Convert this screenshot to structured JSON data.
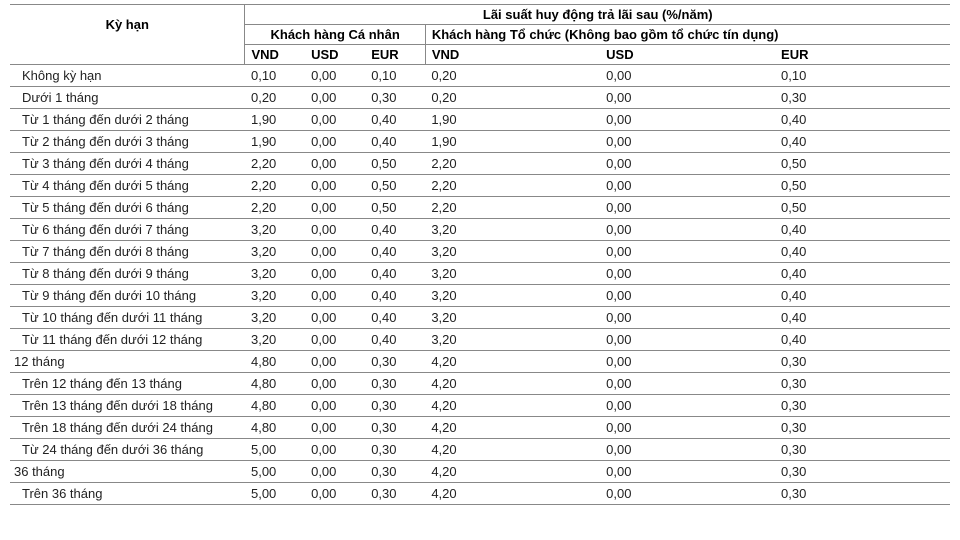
{
  "header": {
    "term_label": "Kỳ hạn",
    "group_title": "Lãi suất huy động trả lãi sau (%/năm)",
    "sub_personal": "Khách hàng Cá nhân",
    "sub_org": "Khách hàng Tổ chức (Không bao gồm tổ chức tín dụng)",
    "currencies": {
      "vnd": "VND",
      "usd": "USD",
      "eur": "EUR"
    }
  },
  "rows": [
    {
      "term": "Không kỳ hạn",
      "p_vnd": "0,10",
      "p_usd": "0,00",
      "p_eur": "0,10",
      "o_vnd": "0,20",
      "o_usd": "0,00",
      "o_eur": "0,10",
      "noindent": false
    },
    {
      "term": "Dưới 1 tháng",
      "p_vnd": "0,20",
      "p_usd": "0,00",
      "p_eur": "0,30",
      "o_vnd": "0,20",
      "o_usd": "0,00",
      "o_eur": "0,30",
      "noindent": false
    },
    {
      "term": "Từ 1 tháng đến dưới 2 tháng",
      "p_vnd": "1,90",
      "p_usd": "0,00",
      "p_eur": "0,40",
      "o_vnd": "1,90",
      "o_usd": "0,00",
      "o_eur": "0,40",
      "noindent": false
    },
    {
      "term": "Từ 2 tháng đến dưới 3 tháng",
      "p_vnd": "1,90",
      "p_usd": "0,00",
      "p_eur": "0,40",
      "o_vnd": "1,90",
      "o_usd": "0,00",
      "o_eur": "0,40",
      "noindent": false
    },
    {
      "term": "Từ 3 tháng đến dưới 4 tháng",
      "p_vnd": "2,20",
      "p_usd": "0,00",
      "p_eur": "0,50",
      "o_vnd": "2,20",
      "o_usd": "0,00",
      "o_eur": "0,50",
      "noindent": false
    },
    {
      "term": "Từ 4 tháng đến dưới 5 tháng",
      "p_vnd": "2,20",
      "p_usd": "0,00",
      "p_eur": "0,50",
      "o_vnd": "2,20",
      "o_usd": "0,00",
      "o_eur": "0,50",
      "noindent": false
    },
    {
      "term": "Từ 5 tháng đến dưới 6 tháng",
      "p_vnd": "2,20",
      "p_usd": "0,00",
      "p_eur": "0,50",
      "o_vnd": "2,20",
      "o_usd": "0,00",
      "o_eur": "0,50",
      "noindent": false
    },
    {
      "term": "Từ 6 tháng đến dưới 7 tháng",
      "p_vnd": "3,20",
      "p_usd": "0,00",
      "p_eur": "0,40",
      "o_vnd": "3,20",
      "o_usd": "0,00",
      "o_eur": "0,40",
      "noindent": false
    },
    {
      "term": "Từ 7 tháng đến dưới 8 tháng",
      "p_vnd": "3,20",
      "p_usd": "0,00",
      "p_eur": "0,40",
      "o_vnd": "3,20",
      "o_usd": "0,00",
      "o_eur": "0,40",
      "noindent": false
    },
    {
      "term": "Từ 8 tháng đến dưới 9 tháng",
      "p_vnd": "3,20",
      "p_usd": "0,00",
      "p_eur": "0,40",
      "o_vnd": "3,20",
      "o_usd": "0,00",
      "o_eur": "0,40",
      "noindent": false
    },
    {
      "term": "Từ 9 tháng đến dưới 10 tháng",
      "p_vnd": "3,20",
      "p_usd": "0,00",
      "p_eur": "0,40",
      "o_vnd": "3,20",
      "o_usd": "0,00",
      "o_eur": "0,40",
      "noindent": false
    },
    {
      "term": "Từ 10 tháng đến dưới 11 tháng",
      "p_vnd": "3,20",
      "p_usd": "0,00",
      "p_eur": "0,40",
      "o_vnd": "3,20",
      "o_usd": "0,00",
      "o_eur": "0,40",
      "noindent": false
    },
    {
      "term": "Từ 11 tháng đến dưới 12 tháng",
      "p_vnd": "3,20",
      "p_usd": "0,00",
      "p_eur": "0,40",
      "o_vnd": "3,20",
      "o_usd": "0,00",
      "o_eur": "0,40",
      "noindent": false
    },
    {
      "term": "12 tháng",
      "p_vnd": "4,80",
      "p_usd": "0,00",
      "p_eur": "0,30",
      "o_vnd": "4,20",
      "o_usd": "0,00",
      "o_eur": "0,30",
      "noindent": true
    },
    {
      "term": "Trên 12 tháng đến 13 tháng",
      "p_vnd": "4,80",
      "p_usd": "0,00",
      "p_eur": "0,30",
      "o_vnd": "4,20",
      "o_usd": "0,00",
      "o_eur": "0,30",
      "noindent": false
    },
    {
      "term": "Trên 13 tháng đến dưới 18 tháng",
      "p_vnd": "4,80",
      "p_usd": "0,00",
      "p_eur": "0,30",
      "o_vnd": "4,20",
      "o_usd": "0,00",
      "o_eur": "0,30",
      "noindent": false
    },
    {
      "term": "Trên 18 tháng đến dưới 24 tháng",
      "p_vnd": "4,80",
      "p_usd": "0,00",
      "p_eur": "0,30",
      "o_vnd": "4,20",
      "o_usd": "0,00",
      "o_eur": "0,30",
      "noindent": false
    },
    {
      "term": "Từ 24 tháng đến dưới 36 tháng",
      "p_vnd": "5,00",
      "p_usd": "0,00",
      "p_eur": "0,30",
      "o_vnd": "4,20",
      "o_usd": "0,00",
      "o_eur": "0,30",
      "noindent": false
    },
    {
      "term": "36 tháng",
      "p_vnd": "5,00",
      "p_usd": "0,00",
      "p_eur": "0,30",
      "o_vnd": "4,20",
      "o_usd": "0,00",
      "o_eur": "0,30",
      "noindent": true
    },
    {
      "term": "Trên 36 tháng",
      "p_vnd": "5,00",
      "p_usd": "0,00",
      "p_eur": "0,30",
      "o_vnd": "4,20",
      "o_usd": "0,00",
      "o_eur": "0,30",
      "noindent": false
    }
  ]
}
